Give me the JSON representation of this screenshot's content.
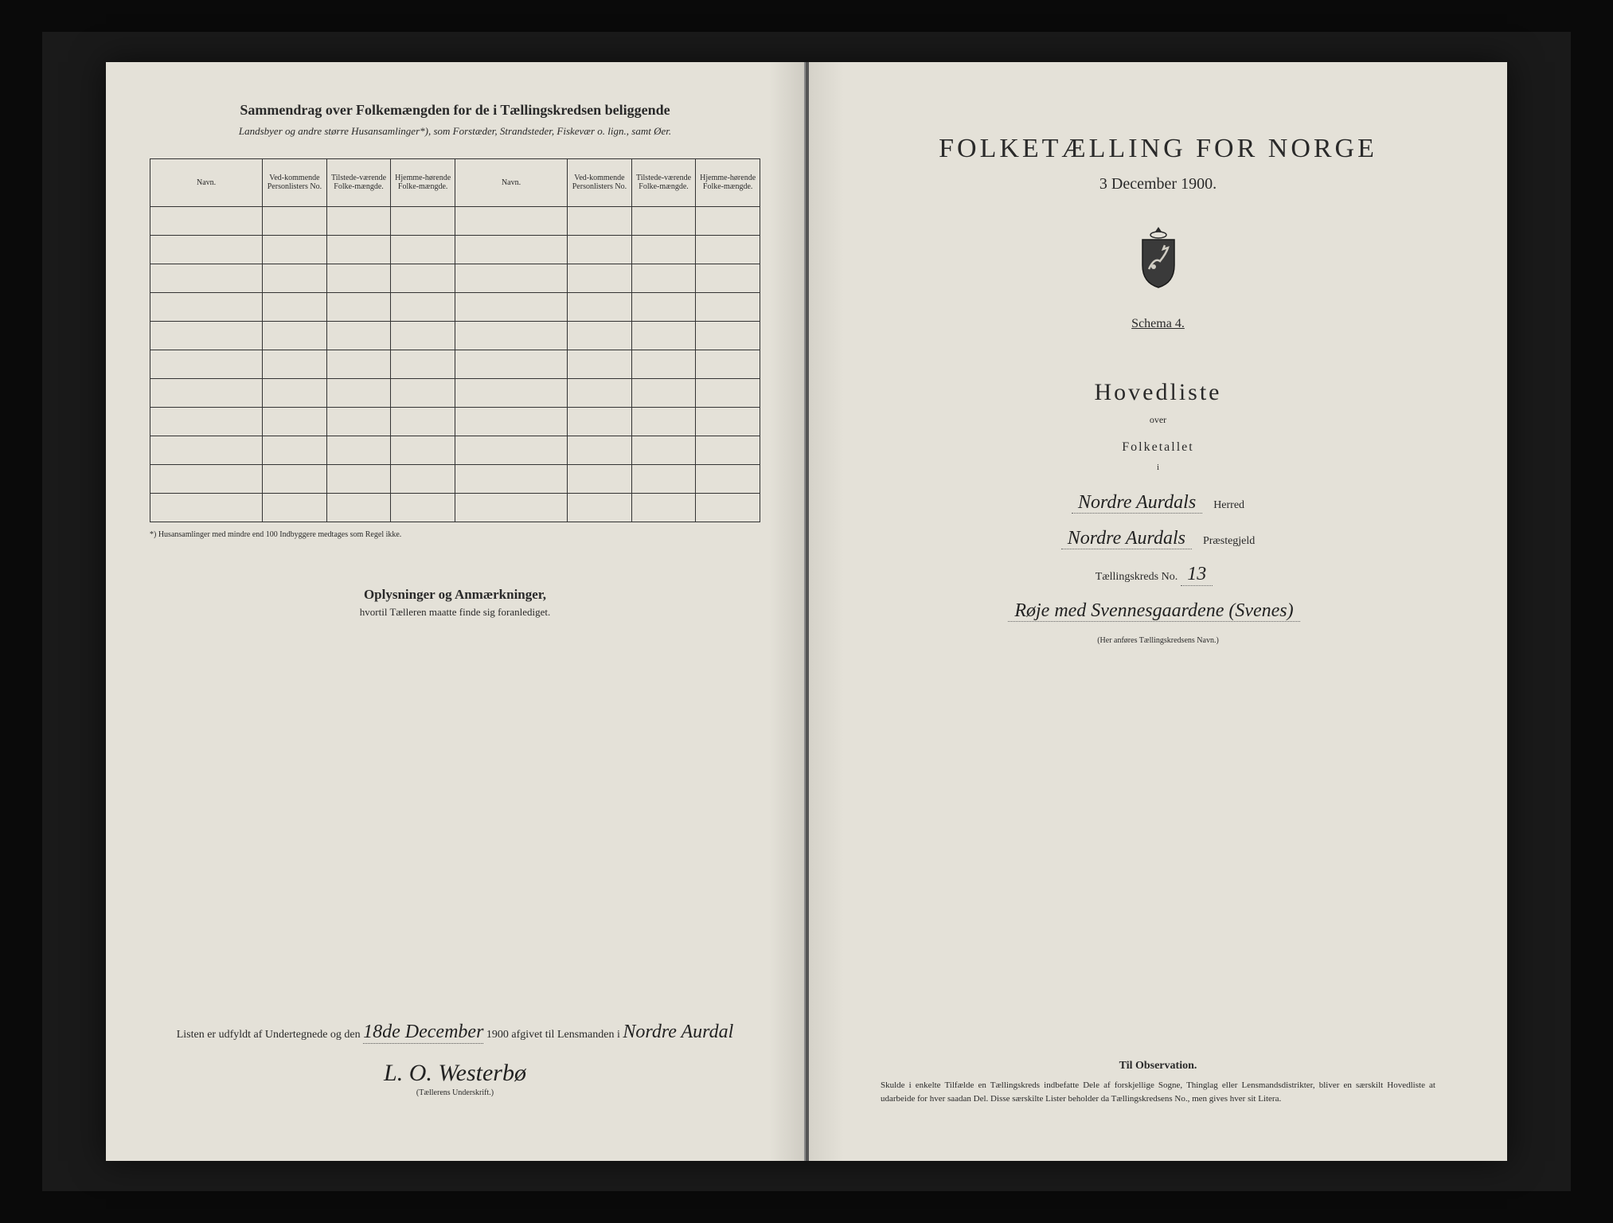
{
  "left": {
    "title": "Sammendrag over Folkemængden for de i Tællingskredsen beliggende",
    "subtitle": "Landsbyer og andre større Husansamlinger*), som Forstæder, Strandsteder, Fiskevær o. lign., samt Øer.",
    "columns": [
      "Navn.",
      "Ved-kommende Personlisters No.",
      "Tilstede-værende Folke-mængde.",
      "Hjemme-hørende Folke-mængde.",
      "Navn.",
      "Ved-kommende Personlisters No.",
      "Tilstede-værende Folke-mængde.",
      "Hjemme-hørende Folke-mængde."
    ],
    "blank_rows": 11,
    "footnote": "*) Husansamlinger med mindre end 100 Indbyggere medtages som Regel ikke.",
    "remarks_title": "Oplysninger og Anmærkninger,",
    "remarks_sub": "hvortil Tælleren maatte finde sig foranlediget.",
    "sig_prefix": "Listen er udfyldt af Undertegnede og den",
    "sig_date": "18de December",
    "sig_year": "1900",
    "sig_mid": "afgivet til Lensmanden i",
    "sig_place": "Nordre Aurdal",
    "signature": "L. O. Westerbø",
    "sig_caption": "(Tællerens Underskrift.)"
  },
  "right": {
    "main_title": "FOLKETÆLLING FOR NORGE",
    "date": "3 December 1900.",
    "schema": "Schema 4.",
    "hovedliste": "Hovedliste",
    "over": "over",
    "folketallet": "Folketallet",
    "i": "i",
    "herred_hand": "Nordre Aurdals",
    "herred_label": "Herred",
    "prest_hand": "Nordre Aurdals",
    "prest_label": "Præstegjeld",
    "kreds_label": "Tællingskreds No.",
    "kreds_no": "13",
    "district_name": "Røje med Svennesgaardene (Svenes)",
    "district_caption": "(Her anføres Tællingskredsens Navn.)",
    "obs_title": "Til Observation.",
    "obs_text": "Skulde i enkelte Tilfælde en Tællingskreds indbefatte Dele af forskjellige Sogne, Thinglag eller Lensmandsdistrikter, bliver en særskilt Hovedliste at udarbeide for hver saadan Del. Disse særskilte Lister beholder da Tællingskredsens No., men gives hver sit Litera."
  },
  "colors": {
    "paper": "#e4e1d8",
    "ink": "#2a2a2a",
    "frame": "#0a0a0a"
  }
}
